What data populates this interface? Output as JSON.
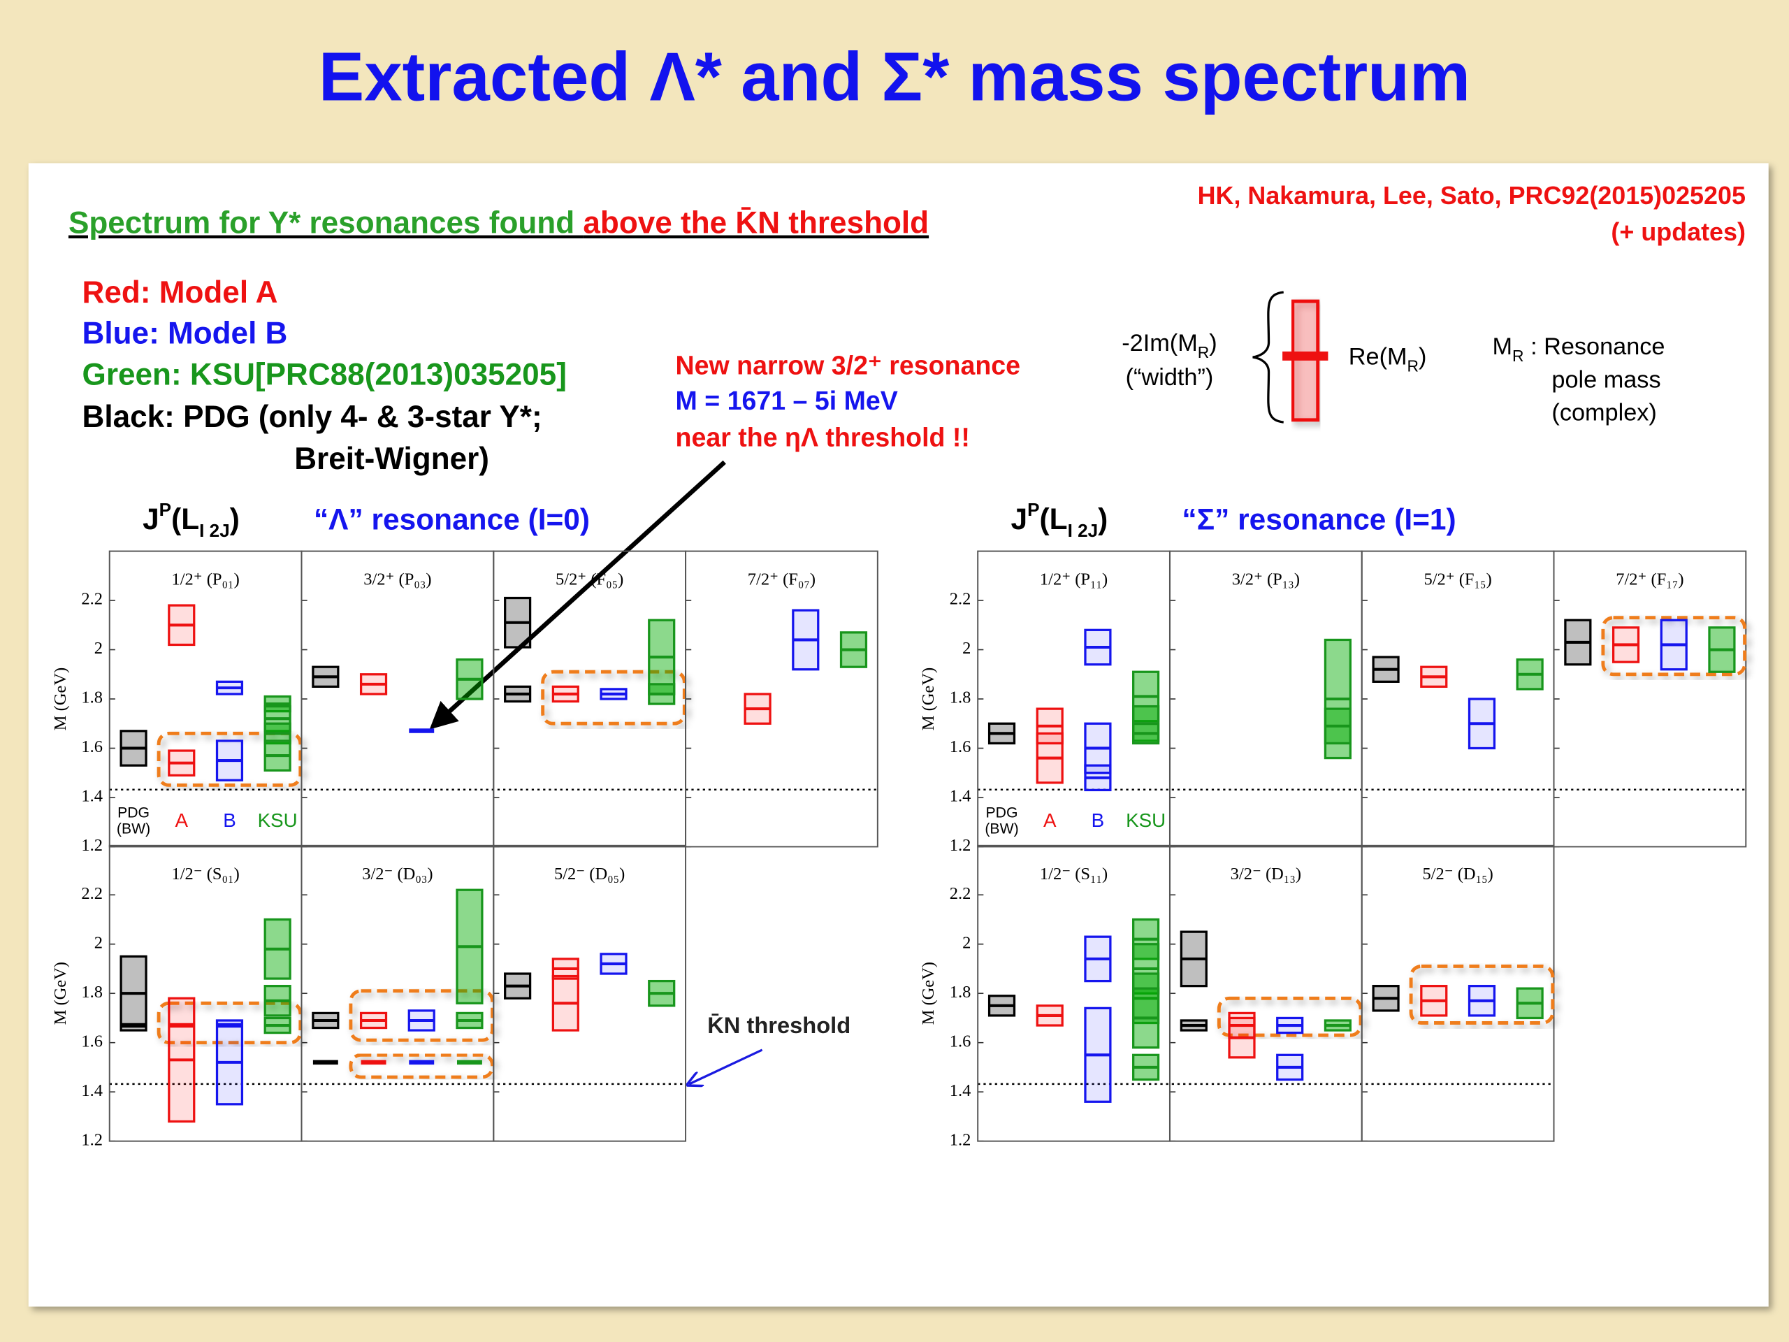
{
  "title": "Extracted Λ* and Σ* mass spectrum",
  "subtitle": [
    "Spectrum for Y* resonances found ",
    "above the K̄N threshold"
  ],
  "reference": [
    "HK, Nakamura, Lee, Sato, PRC92(2015)025205",
    "(+ updates)"
  ],
  "legend": [
    "Red: Model A",
    "Blue: Model B",
    "Green: KSU[PRC88(2013)035205]",
    "Black: PDG (only 4- & 3-star Y*;",
    "Breit-Wigner)"
  ],
  "annotation": [
    "New narrow 3/2⁺ resonance",
    "M  = 1671 – 5i MeV",
    "near the ηΛ threshold !!"
  ],
  "threshold_label": "K̄N threshold",
  "width_legend": {
    "im_label": [
      "-2Im(M",
      "R",
      ")"
    ],
    "width_word": "(“width”)",
    "re_label": [
      "Re(M",
      "R",
      ")"
    ],
    "mr_label": [
      "M",
      "R",
      " : Resonance"
    ],
    "mr_lines": [
      "pole mass",
      "(complex)"
    ]
  },
  "chart_data": [
    {
      "type": "range",
      "title": "“Λ” resonance (I=0)",
      "header": [
        "J",
        "P",
        "(L",
        "I 2J",
        ")"
      ],
      "y_label": "M (GeV)",
      "ylim": [
        1.2,
        2.4
      ],
      "yticks": [
        1.2,
        1.4,
        1.6,
        1.8,
        2,
        2.2
      ],
      "threshold": 1.432,
      "series": [
        {
          "name_lines": [
            "PDG",
            "(BW)"
          ],
          "color": "#000000",
          "fill": "rgba(0,0,0,0.25)"
        },
        {
          "name_lines": [
            "A"
          ],
          "color": "#ee1111",
          "fill": "rgba(255,0,0,0.13)"
        },
        {
          "name_lines": [
            "B"
          ],
          "color": "#1515ee",
          "fill": "rgba(0,0,255,0.10)"
        },
        {
          "name_lines": [
            "KSU"
          ],
          "color": "#18961c",
          "fill": "rgba(0,170,0,0.45)"
        }
      ],
      "rows": [
        [
          {
            "label": "1/2⁺ (P₀₁)",
            "data": [
              {
                "values": [
                  1.6
                ],
                "widths": [
                  0.14
                ]
              },
              {
                "values": [
                  2.1,
                  1.54
                ],
                "widths": [
                  0.16,
                  0.1
                ]
              },
              {
                "values": [
                  1.845,
                  1.55
                ],
                "widths": [
                  0.05,
                  0.16
                ]
              },
              {
                "values": [
                  1.78,
                  1.72,
                  1.66,
                  1.57
                ],
                "widths": [
                  0.06,
                  0.1,
                  0.08,
                  0.12
                ]
              }
            ],
            "highlights": [
              [
                1.45,
                1.66
              ]
            ]
          },
          {
            "label": "3/2⁺ (P₀₃)",
            "data": [
              {
                "values": [
                  1.89
                ],
                "widths": [
                  0.08
                ]
              },
              {
                "values": [
                  1.86
                ],
                "widths": [
                  0.08
                ]
              },
              {
                "values": [
                  1.671
                ],
                "widths": [
                  0.01
                ]
              },
              {
                "values": [
                  1.88
                ],
                "widths": [
                  0.16
                ]
              }
            ],
            "highlights": []
          },
          {
            "label": "5/2⁺ (F₀₅)",
            "data": [
              {
                "values": [
                  2.11,
                  1.82
                ],
                "widths": [
                  0.2,
                  0.06
                ]
              },
              {
                "values": [
                  1.82
                ],
                "widths": [
                  0.06
                ]
              },
              {
                "values": [
                  1.82
                ],
                "widths": [
                  0.04
                ]
              },
              {
                "values": [
                  1.97,
                  1.82
                ],
                "widths": [
                  0.3,
                  0.08
                ]
              }
            ],
            "highlights": [
              [
                1.7,
                1.91
              ]
            ]
          },
          {
            "label": "7/2⁺ (F₀₇)",
            "data": [
              {
                "values": [],
                "widths": []
              },
              {
                "values": [
                  1.76
                ],
                "widths": [
                  0.12
                ]
              },
              {
                "values": [
                  2.04
                ],
                "widths": [
                  0.24
                ]
              },
              {
                "values": [
                  2.0
                ],
                "widths": [
                  0.14
                ]
              }
            ],
            "highlights": []
          }
        ],
        [
          {
            "label": "1/2⁻ (S₀₁)",
            "data": [
              {
                "values": [
                  1.8,
                  1.67
                ],
                "widths": [
                  0.3,
                  0.01
                ]
              },
              {
                "values": [
                  1.67,
                  1.53
                ],
                "widths": [
                  0.01,
                  0.5
                ]
              },
              {
                "values": [
                  1.67,
                  1.52
                ],
                "widths": [
                  0.01,
                  0.34
                ]
              },
              {
                "values": [
                  1.98,
                  1.77,
                  1.67
                ],
                "widths": [
                  0.24,
                  0.12,
                  0.06
                ]
              }
            ],
            "highlights": [
              [
                1.6,
                1.76
              ]
            ]
          },
          {
            "label": "3/2⁻ (D₀₃)",
            "data": [
              {
                "values": [
                  1.69,
                  1.52
                ],
                "widths": [
                  0.06,
                  0.01
                ]
              },
              {
                "values": [
                  1.69,
                  1.52
                ],
                "widths": [
                  0.06,
                  0.01
                ]
              },
              {
                "values": [
                  1.69,
                  1.52
                ],
                "widths": [
                  0.08,
                  0.01
                ]
              },
              {
                "values": [
                  1.99,
                  1.69,
                  1.52
                ],
                "widths": [
                  0.46,
                  0.06,
                  0.01
                ]
              }
            ],
            "highlights": [
              [
                1.61,
                1.81
              ],
              [
                1.46,
                1.55
              ]
            ]
          },
          {
            "label": "5/2⁻ (D₀₅)",
            "data": [
              {
                "values": [
                  1.83
                ],
                "widths": [
                  0.1
                ]
              },
              {
                "values": [
                  1.9,
                  1.76
                ],
                "widths": [
                  0.08,
                  0.22
                ]
              },
              {
                "values": [
                  1.92
                ],
                "widths": [
                  0.08
                ]
              },
              {
                "values": [
                  1.8
                ],
                "widths": [
                  0.1
                ]
              }
            ],
            "highlights": []
          }
        ]
      ]
    },
    {
      "type": "range",
      "title": "“Σ” resonance (I=1)",
      "header": [
        "J",
        "P",
        "(L",
        "I 2J",
        ")"
      ],
      "y_label": "M (GeV)",
      "ylim": [
        1.2,
        2.4
      ],
      "yticks": [
        1.2,
        1.4,
        1.6,
        1.8,
        2,
        2.2
      ],
      "threshold": 1.432,
      "series": [
        {
          "name_lines": [
            "PDG",
            "(BW)"
          ],
          "color": "#000000",
          "fill": "rgba(0,0,0,0.25)"
        },
        {
          "name_lines": [
            "A"
          ],
          "color": "#ee1111",
          "fill": "rgba(255,0,0,0.13)"
        },
        {
          "name_lines": [
            "B"
          ],
          "color": "#1515ee",
          "fill": "rgba(0,0,255,0.10)"
        },
        {
          "name_lines": [
            "KSU"
          ],
          "color": "#18961c",
          "fill": "rgba(0,170,0,0.45)"
        }
      ],
      "rows": [
        [
          {
            "label": "1/2⁺ (P₁₁)",
            "data": [
              {
                "values": [
                  1.66
                ],
                "widths": [
                  0.08
                ]
              },
              {
                "values": [
                  1.69,
                  1.56
                ],
                "widths": [
                  0.14,
                  0.2
                ]
              },
              {
                "values": [
                  2.01,
                  1.6,
                  1.48
                ],
                "widths": [
                  0.14,
                  0.2,
                  0.1
                ]
              },
              {
                "values": [
                  1.81,
                  1.7,
                  1.66
                ],
                "widths": [
                  0.2,
                  0.14,
                  0.08
                ]
              }
            ],
            "highlights": []
          },
          {
            "label": "3/2⁺ (P₁₃)",
            "data": [
              {
                "values": [],
                "widths": []
              },
              {
                "values": [],
                "widths": []
              },
              {
                "values": [],
                "widths": []
              },
              {
                "values": [
                  1.8,
                  1.69
                ],
                "widths": [
                  0.48,
                  0.14
                ]
              }
            ],
            "highlights": []
          },
          {
            "label": "5/2⁺ (F₁₅)",
            "data": [
              {
                "values": [
                  1.92
                ],
                "widths": [
                  0.1
                ]
              },
              {
                "values": [
                  1.89
                ],
                "widths": [
                  0.08
                ]
              },
              {
                "values": [
                  1.7
                ],
                "widths": [
                  0.2
                ]
              },
              {
                "values": [
                  1.9
                ],
                "widths": [
                  0.12
                ]
              }
            ],
            "highlights": []
          },
          {
            "label": "7/2⁺ (F₁₇)",
            "data": [
              {
                "values": [
                  2.03
                ],
                "widths": [
                  0.18
                ]
              },
              {
                "values": [
                  2.02
                ],
                "widths": [
                  0.14
                ]
              },
              {
                "values": [
                  2.02
                ],
                "widths": [
                  0.2
                ]
              },
              {
                "values": [
                  2.0
                ],
                "widths": [
                  0.18
                ]
              }
            ],
            "highlights": [
              [
                1.9,
                2.13
              ]
            ]
          }
        ],
        [
          {
            "label": "1/2⁻ (S₁₁)",
            "data": [
              {
                "values": [
                  1.75
                ],
                "widths": [
                  0.08
                ]
              },
              {
                "values": [
                  1.71
                ],
                "widths": [
                  0.08
                ]
              },
              {
                "values": [
                  1.94,
                  1.55
                ],
                "widths": [
                  0.18,
                  0.38
                ]
              },
              {
                "values": [
                  2.02,
                  1.9,
                  1.78,
                  1.7,
                  1.5
                ],
                "widths": [
                  0.16,
                  0.2,
                  0.2,
                  0.24,
                  0.1
                ]
              }
            ],
            "highlights": []
          },
          {
            "label": "3/2⁻ (D₁₃)",
            "data": [
              {
                "values": [
                  1.94,
                  1.67
                ],
                "widths": [
                  0.22,
                  0.04
                ]
              },
              {
                "values": [
                  1.67,
                  1.62
                ],
                "widths": [
                  0.1,
                  0.16
                ]
              },
              {
                "values": [
                  1.67,
                  1.5
                ],
                "widths": [
                  0.06,
                  0.1
                ]
              },
              {
                "values": [
                  1.67
                ],
                "widths": [
                  0.04
                ]
              }
            ],
            "highlights": [
              [
                1.63,
                1.78
              ]
            ]
          },
          {
            "label": "5/2⁻ (D₁₅)",
            "data": [
              {
                "values": [
                  1.78
                ],
                "widths": [
                  0.1
                ]
              },
              {
                "values": [
                  1.77
                ],
                "widths": [
                  0.12
                ]
              },
              {
                "values": [
                  1.77
                ],
                "widths": [
                  0.12
                ]
              },
              {
                "values": [
                  1.76
                ],
                "widths": [
                  0.12
                ]
              }
            ],
            "highlights": [
              [
                1.68,
                1.91
              ]
            ]
          }
        ]
      ]
    }
  ]
}
